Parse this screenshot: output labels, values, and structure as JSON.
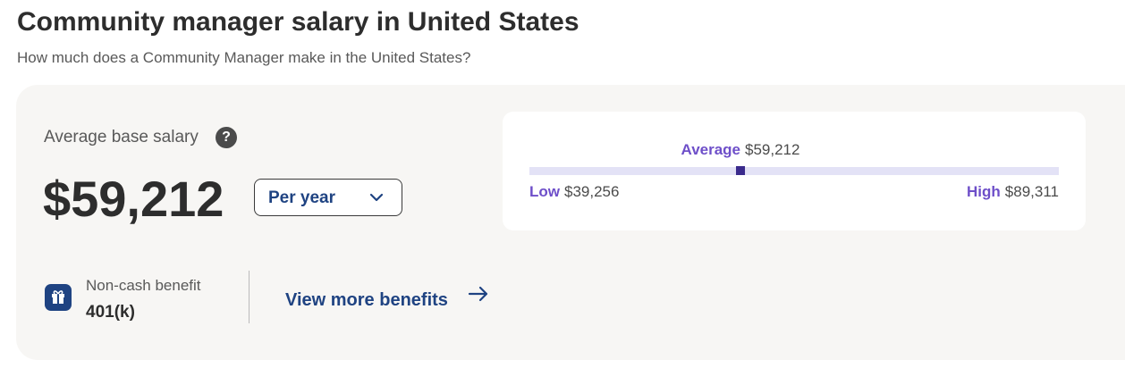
{
  "header": {
    "title": "Community manager salary in United States",
    "subtitle": "How much does a Community Manager make in the United States?"
  },
  "average_base_salary": {
    "label": "Average base salary",
    "help_icon": "?",
    "amount": "$59,212",
    "period": "Per year"
  },
  "salary_range": {
    "average": {
      "label": "Average",
      "value": 59212,
      "value_label": "$59,212"
    },
    "low": {
      "label": "Low",
      "value": 39256,
      "value_label": "$39,256"
    },
    "high": {
      "label": "High",
      "value": 89311,
      "value_label": "$89,311"
    }
  },
  "benefits": {
    "label": "Non-cash benefit",
    "value": "401(k)",
    "link": "View more benefits"
  }
}
